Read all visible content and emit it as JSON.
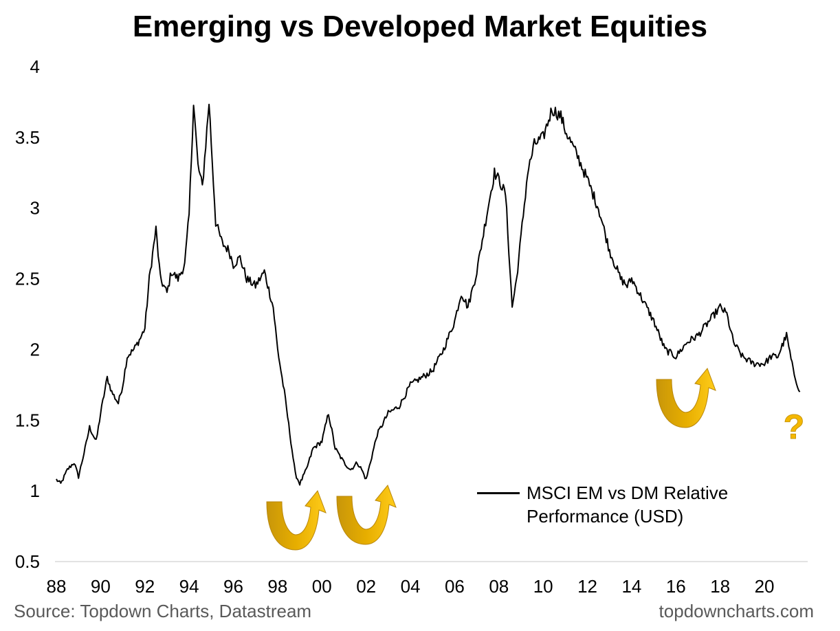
{
  "chart_data": {
    "type": "line",
    "title": "Emerging vs Developed Market Equities",
    "xlabel": "",
    "ylabel": "",
    "ylim": [
      0.5,
      4
    ],
    "yticks": [
      "0.5",
      "1",
      "1.5",
      "2",
      "2.5",
      "3",
      "3.5",
      "4"
    ],
    "xlim": [
      1988,
      2021.8
    ],
    "xticks": [
      "88",
      "90",
      "92",
      "94",
      "96",
      "98",
      "00",
      "02",
      "04",
      "06",
      "08",
      "10",
      "12",
      "14",
      "16",
      "18",
      "20"
    ],
    "grid": false,
    "legend_position": "bottom-right",
    "series": [
      {
        "name": "MSCI EM vs DM Relative Performance (USD)",
        "color": "#000000",
        "x": [
          1988.0,
          1988.2,
          1988.5,
          1988.8,
          1989.0,
          1989.3,
          1989.5,
          1989.8,
          1990.0,
          1990.3,
          1990.5,
          1990.8,
          1991.0,
          1991.2,
          1991.5,
          1991.8,
          1992.0,
          1992.2,
          1992.5,
          1992.7,
          1993.0,
          1993.2,
          1993.5,
          1993.8,
          1994.0,
          1994.2,
          1994.4,
          1994.6,
          1994.9,
          1995.2,
          1995.5,
          1995.8,
          1996.0,
          1996.3,
          1996.6,
          1997.0,
          1997.4,
          1997.8,
          1998.0,
          1998.3,
          1998.6,
          1998.8,
          1999.0,
          1999.3,
          1999.6,
          2000.0,
          2000.3,
          2000.6,
          2001.0,
          2001.3,
          2001.6,
          2001.8,
          2002.0,
          2002.5,
          2003.0,
          2003.5,
          2004.0,
          2004.5,
          2005.0,
          2005.5,
          2006.0,
          2006.3,
          2006.6,
          2007.0,
          2007.5,
          2007.8,
          2008.0,
          2008.3,
          2008.6,
          2008.8,
          2009.0,
          2009.3,
          2009.6,
          2010.0,
          2010.4,
          2010.8,
          2011.0,
          2011.3,
          2011.6,
          2012.0,
          2012.5,
          2013.0,
          2013.5,
          2013.8,
          2014.0,
          2014.5,
          2015.0,
          2015.5,
          2016.0,
          2016.5,
          2017.0,
          2017.5,
          2018.0,
          2018.3,
          2018.6,
          2019.0,
          2019.5,
          2020.0,
          2020.3,
          2020.6,
          2021.0,
          2021.3,
          2021.6
        ],
        "values": [
          1.08,
          1.05,
          1.15,
          1.2,
          1.1,
          1.3,
          1.45,
          1.35,
          1.55,
          1.8,
          1.7,
          1.62,
          1.75,
          1.95,
          2.0,
          2.08,
          2.15,
          2.5,
          2.85,
          2.5,
          2.4,
          2.55,
          2.5,
          2.6,
          2.95,
          3.75,
          3.3,
          3.15,
          3.75,
          2.9,
          2.75,
          2.7,
          2.6,
          2.65,
          2.5,
          2.45,
          2.55,
          2.3,
          2.0,
          1.7,
          1.35,
          1.12,
          1.05,
          1.15,
          1.3,
          1.35,
          1.55,
          1.3,
          1.2,
          1.15,
          1.2,
          1.15,
          1.08,
          1.4,
          1.55,
          1.6,
          1.75,
          1.8,
          1.85,
          2.0,
          2.2,
          2.4,
          2.3,
          2.55,
          3.0,
          3.25,
          3.2,
          3.1,
          2.3,
          2.5,
          2.8,
          3.25,
          3.45,
          3.5,
          3.7,
          3.65,
          3.55,
          3.45,
          3.35,
          3.2,
          3.0,
          2.7,
          2.5,
          2.45,
          2.5,
          2.35,
          2.2,
          2.0,
          1.95,
          2.05,
          2.1,
          2.2,
          2.3,
          2.25,
          2.05,
          1.95,
          1.9,
          1.9,
          1.95,
          1.95,
          2.1,
          1.85,
          1.7
        ]
      }
    ],
    "annotations": [
      "?"
    ]
  },
  "legend": {
    "label": "MSCI EM vs DM Relative Performance (USD)"
  },
  "footer": {
    "source": "Source: Topdown Charts, Datastream",
    "brand": "topdowncharts.com"
  },
  "annotation_text": {
    "question": "?"
  },
  "colors": {
    "line": "#000000",
    "arrow": "#F5B800",
    "arrow_dark": "#C8960A",
    "footer_text": "#595959"
  },
  "icons": [
    "u-turn-arrow-icon",
    "question-mark-icon"
  ]
}
